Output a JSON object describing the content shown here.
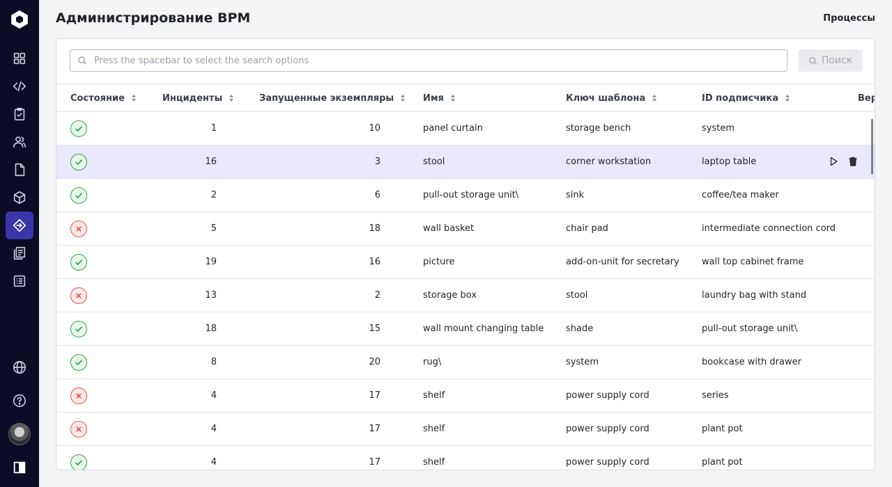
{
  "header": {
    "title": "Администрирование BPM",
    "process_link": "Процессы"
  },
  "search": {
    "placeholder": "Press the spacebar to select the search options",
    "button_label": "Поиск"
  },
  "table": {
    "columns": [
      "Состояние",
      "Инциденты",
      "Запущенные экземпляры",
      "Имя",
      "Ключ шаблона",
      "ID подписчика",
      "Вер"
    ],
    "rows": [
      {
        "state": "ok",
        "incidents": "1",
        "running": "10",
        "name": "panel curtain",
        "template_key": "storage bench",
        "subscriber_id": "system"
      },
      {
        "state": "ok",
        "incidents": "16",
        "running": "3",
        "name": "stool",
        "template_key": "corner workstation",
        "subscriber_id": "laptop table",
        "highlighted": true
      },
      {
        "state": "ok",
        "incidents": "2",
        "running": "6",
        "name": "pull-out storage unit\\",
        "template_key": "sink",
        "subscriber_id": "coffee/tea maker"
      },
      {
        "state": "error",
        "incidents": "5",
        "running": "18",
        "name": "wall basket",
        "template_key": "chair pad",
        "subscriber_id": "intermediate connection cord"
      },
      {
        "state": "ok",
        "incidents": "19",
        "running": "16",
        "name": "picture",
        "template_key": "add-on-unit for secretary",
        "subscriber_id": "wall top cabinet frame"
      },
      {
        "state": "error",
        "incidents": "13",
        "running": "2",
        "name": "storage box",
        "template_key": "stool",
        "subscriber_id": "laundry bag with stand"
      },
      {
        "state": "ok",
        "incidents": "18",
        "running": "15",
        "name": "wall mount changing table",
        "template_key": "shade",
        "subscriber_id": "pull-out storage unit\\"
      },
      {
        "state": "ok",
        "incidents": "8",
        "running": "20",
        "name": "rug\\",
        "template_key": "system",
        "subscriber_id": "bookcase with drawer"
      },
      {
        "state": "error",
        "incidents": "4",
        "running": "17",
        "name": "shelf",
        "template_key": "power supply cord",
        "subscriber_id": "series"
      },
      {
        "state": "error",
        "incidents": "4",
        "running": "17",
        "name": "shelf",
        "template_key": "power supply cord",
        "subscriber_id": "plant pot"
      },
      {
        "state": "ok",
        "incidents": "4",
        "running": "17",
        "name": "shelf",
        "template_key": "power supply cord",
        "subscriber_id": "plant pot"
      }
    ]
  },
  "sidebar": {
    "items": [
      "dashboard-icon",
      "code-icon",
      "clipboard-check-icon",
      "users-icon",
      "document-icon",
      "cube-icon",
      "bpm-icon",
      "notebook-icon",
      "list-icon"
    ],
    "active": "bpm-icon",
    "bottom": [
      "globe-icon",
      "help-icon",
      "avatar",
      "panel-toggle-icon"
    ]
  },
  "colors": {
    "sidebar_bg": "#0d0c27",
    "active_item": "#3a35a8",
    "ok": "#2ea44f",
    "error": "#e5534b",
    "row_highlight": "#e9e9fb"
  }
}
